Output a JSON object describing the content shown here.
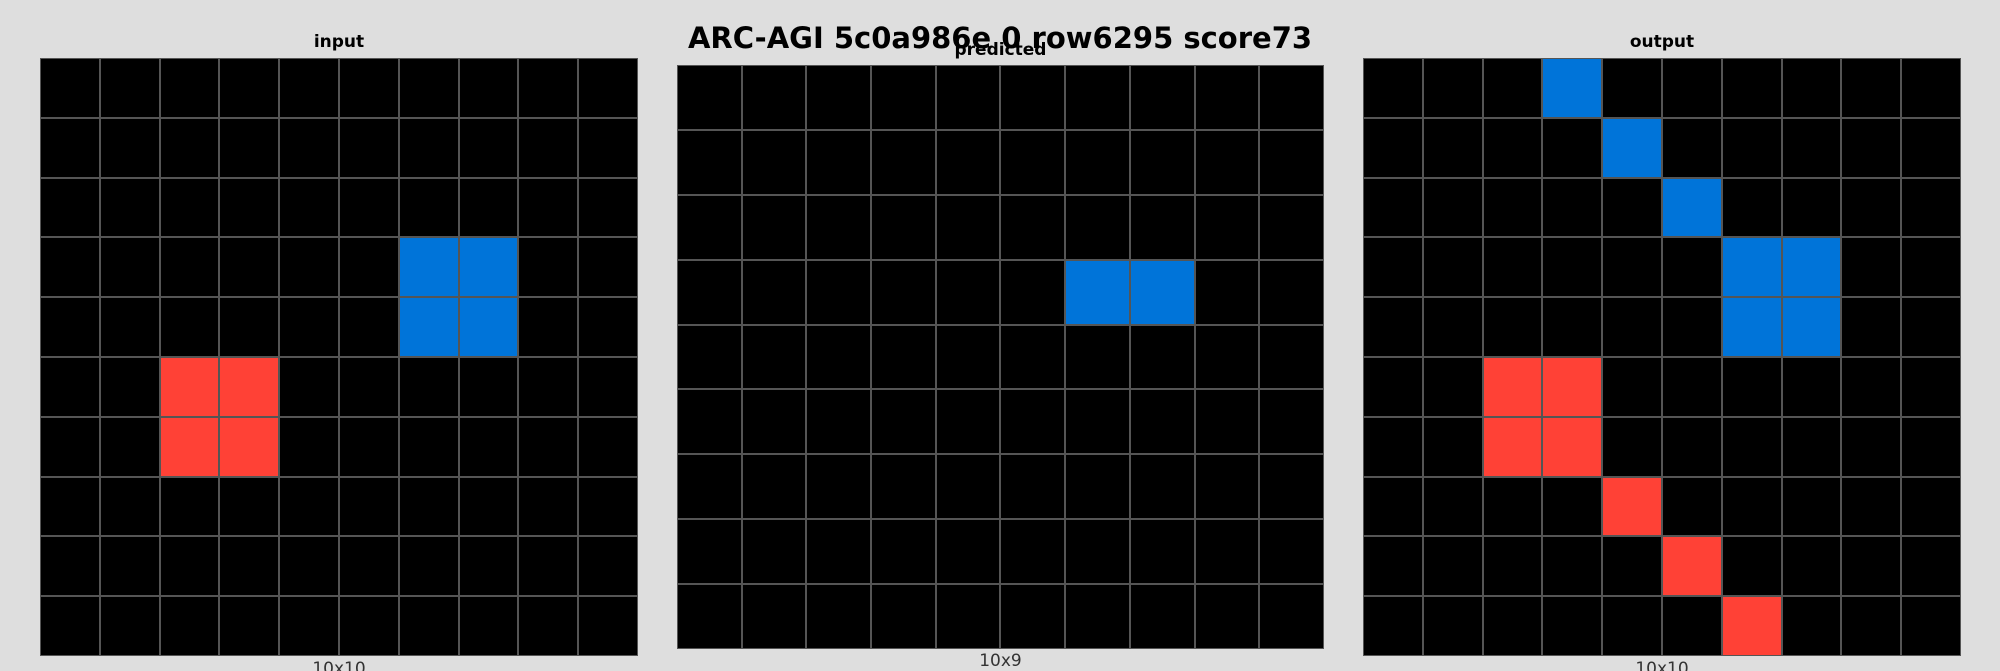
{
  "title": "ARC-AGI 5c0a986e 0 row6295 score73",
  "palette": {
    "0": "#000000",
    "1": "#0074d9",
    "2": "#ff4136"
  },
  "panels": {
    "input": {
      "label": "input",
      "dims": "10x10",
      "grid": [
        [
          0,
          0,
          0,
          0,
          0,
          0,
          0,
          0,
          0,
          0
        ],
        [
          0,
          0,
          0,
          0,
          0,
          0,
          0,
          0,
          0,
          0
        ],
        [
          0,
          0,
          0,
          0,
          0,
          0,
          0,
          0,
          0,
          0
        ],
        [
          0,
          0,
          0,
          0,
          0,
          0,
          1,
          1,
          0,
          0
        ],
        [
          0,
          0,
          0,
          0,
          0,
          0,
          1,
          1,
          0,
          0
        ],
        [
          0,
          0,
          2,
          2,
          0,
          0,
          0,
          0,
          0,
          0
        ],
        [
          0,
          0,
          2,
          2,
          0,
          0,
          0,
          0,
          0,
          0
        ],
        [
          0,
          0,
          0,
          0,
          0,
          0,
          0,
          0,
          0,
          0
        ],
        [
          0,
          0,
          0,
          0,
          0,
          0,
          0,
          0,
          0,
          0
        ],
        [
          0,
          0,
          0,
          0,
          0,
          0,
          0,
          0,
          0,
          0
        ]
      ]
    },
    "predicted": {
      "label": "predicted",
      "dims": "10x9",
      "grid": [
        [
          0,
          0,
          0,
          0,
          0,
          0,
          0,
          0,
          0,
          0
        ],
        [
          0,
          0,
          0,
          0,
          0,
          0,
          0,
          0,
          0,
          0
        ],
        [
          0,
          0,
          0,
          0,
          0,
          0,
          0,
          0,
          0,
          0
        ],
        [
          0,
          0,
          0,
          0,
          0,
          0,
          1,
          1,
          0,
          0
        ],
        [
          0,
          0,
          0,
          0,
          0,
          0,
          0,
          0,
          0,
          0
        ],
        [
          0,
          0,
          0,
          0,
          0,
          0,
          0,
          0,
          0,
          0
        ],
        [
          0,
          0,
          0,
          0,
          0,
          0,
          0,
          0,
          0,
          0
        ],
        [
          0,
          0,
          0,
          0,
          0,
          0,
          0,
          0,
          0,
          0
        ],
        [
          0,
          0,
          0,
          0,
          0,
          0,
          0,
          0,
          0,
          0
        ]
      ]
    },
    "output": {
      "label": "output",
      "dims": "10x10",
      "grid": [
        [
          0,
          0,
          0,
          1,
          0,
          0,
          0,
          0,
          0,
          0
        ],
        [
          0,
          0,
          0,
          0,
          1,
          0,
          0,
          0,
          0,
          0
        ],
        [
          0,
          0,
          0,
          0,
          0,
          1,
          0,
          0,
          0,
          0
        ],
        [
          0,
          0,
          0,
          0,
          0,
          0,
          1,
          1,
          0,
          0
        ],
        [
          0,
          0,
          0,
          0,
          0,
          0,
          1,
          1,
          0,
          0
        ],
        [
          0,
          0,
          2,
          2,
          0,
          0,
          0,
          0,
          0,
          0
        ],
        [
          0,
          0,
          2,
          2,
          0,
          0,
          0,
          0,
          0,
          0
        ],
        [
          0,
          0,
          0,
          0,
          2,
          0,
          0,
          0,
          0,
          0
        ],
        [
          0,
          0,
          0,
          0,
          0,
          2,
          0,
          0,
          0,
          0
        ],
        [
          0,
          0,
          0,
          0,
          0,
          0,
          2,
          0,
          0,
          0
        ]
      ]
    }
  }
}
